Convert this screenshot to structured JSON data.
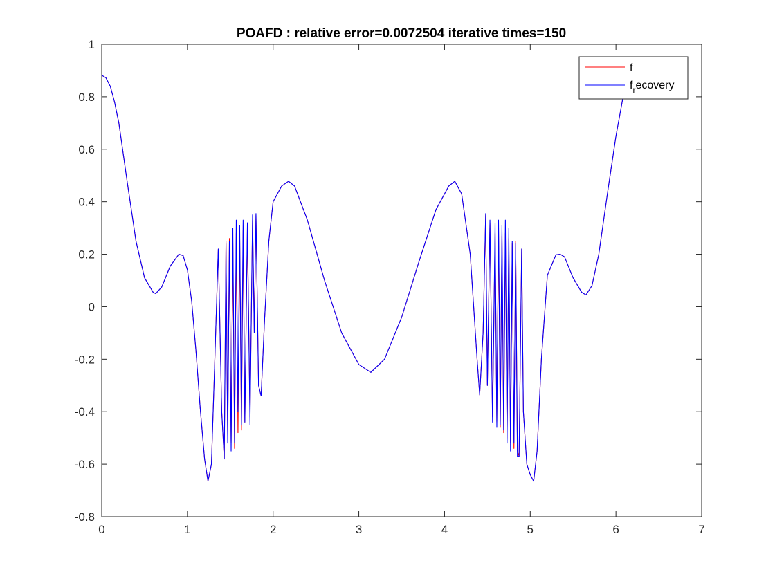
{
  "chart_data": {
    "type": "line",
    "title": "POAFD : relative error=0.0072504  iterative times=150",
    "xlabel": "",
    "ylabel": "",
    "xlim": [
      0,
      7
    ],
    "ylim": [
      -0.8,
      1
    ],
    "xticks": [
      "0",
      "1",
      "2",
      "3",
      "4",
      "5",
      "6",
      "7"
    ],
    "yticks": [
      "-0.8",
      "-0.6",
      "-0.4",
      "-0.2",
      "0",
      "0.2",
      "0.4",
      "0.6",
      "0.8",
      "1"
    ],
    "grid": false,
    "legend_position": "top-right",
    "legend": {
      "entry1": "f",
      "entry2_main": "f",
      "entry2_sub": "r",
      "entry2_rest": "ecovery"
    },
    "series": [
      {
        "name": "f",
        "color": "#ff0000",
        "x": [
          0,
          0.05,
          0.1,
          0.15,
          0.2,
          0.3,
          0.4,
          0.5,
          0.6,
          0.63,
          0.7,
          0.8,
          0.9,
          0.95,
          1.0,
          1.05,
          1.1,
          1.15,
          1.2,
          1.24,
          1.28,
          1.32,
          1.36,
          1.4,
          1.43,
          1.45,
          1.47,
          1.49,
          1.51,
          1.53,
          1.55,
          1.57,
          1.59,
          1.61,
          1.63,
          1.65,
          1.67,
          1.7,
          1.73,
          1.76,
          1.78,
          1.8,
          1.83,
          1.86,
          1.9,
          1.95,
          2.0,
          2.1,
          2.18,
          2.25,
          2.4,
          2.6,
          2.8,
          3.0,
          3.14,
          3.3,
          3.5,
          3.7,
          3.9,
          4.05,
          4.12,
          4.2,
          4.3,
          4.38,
          4.41,
          4.45,
          4.48,
          4.5,
          4.53,
          4.56,
          4.59,
          4.61,
          4.63,
          4.65,
          4.67,
          4.69,
          4.71,
          4.73,
          4.75,
          4.77,
          4.79,
          4.81,
          4.83,
          4.85,
          4.87,
          4.9,
          4.92,
          4.96,
          5.0,
          5.04,
          5.08,
          5.13,
          5.2,
          5.3,
          5.35,
          5.4,
          5.5,
          5.6,
          5.65,
          5.72,
          5.8,
          5.9,
          6.0,
          6.1,
          6.2
        ],
        "y": [
          0.882,
          0.872,
          0.84,
          0.78,
          0.7,
          0.47,
          0.25,
          0.11,
          0.055,
          0.05,
          0.075,
          0.155,
          0.2,
          0.195,
          0.14,
          0.02,
          -0.17,
          -0.39,
          -0.58,
          -0.665,
          -0.6,
          -0.2,
          0.22,
          -0.4,
          -0.58,
          0.25,
          -0.5,
          0.26,
          -0.52,
          0.24,
          -0.54,
          0.28,
          -0.48,
          0.27,
          -0.47,
          0.29,
          -0.44,
          0.3,
          -0.42,
          0.33,
          -0.1,
          0.35,
          -0.3,
          -0.34,
          -0.05,
          0.25,
          0.4,
          0.46,
          0.478,
          0.46,
          0.33,
          0.1,
          -0.1,
          -0.22,
          -0.25,
          -0.2,
          -0.04,
          0.17,
          0.37,
          0.46,
          0.478,
          0.43,
          0.2,
          -0.2,
          -0.336,
          -0.1,
          0.35,
          -0.3,
          0.32,
          -0.42,
          0.28,
          -0.44,
          0.3,
          -0.46,
          0.27,
          -0.48,
          0.28,
          -0.5,
          0.26,
          -0.52,
          0.24,
          -0.54,
          0.25,
          -0.55,
          -0.57,
          0.22,
          -0.4,
          -0.6,
          -0.64,
          -0.665,
          -0.55,
          -0.2,
          0.12,
          0.198,
          0.2,
          0.19,
          0.11,
          0.055,
          0.045,
          0.08,
          0.2,
          0.43,
          0.65,
          0.83,
          0.95
        ]
      },
      {
        "name": "f_recovery",
        "color": "#0000ff",
        "x": [
          0,
          0.05,
          0.1,
          0.15,
          0.2,
          0.3,
          0.4,
          0.5,
          0.6,
          0.63,
          0.7,
          0.8,
          0.9,
          0.95,
          1.0,
          1.05,
          1.1,
          1.15,
          1.2,
          1.24,
          1.28,
          1.32,
          1.36,
          1.4,
          1.43,
          1.45,
          1.47,
          1.49,
          1.51,
          1.53,
          1.55,
          1.57,
          1.59,
          1.61,
          1.63,
          1.65,
          1.67,
          1.7,
          1.73,
          1.76,
          1.78,
          1.8,
          1.83,
          1.86,
          1.9,
          1.95,
          2.0,
          2.1,
          2.18,
          2.25,
          2.4,
          2.6,
          2.8,
          3.0,
          3.14,
          3.3,
          3.5,
          3.7,
          3.9,
          4.05,
          4.12,
          4.2,
          4.3,
          4.38,
          4.41,
          4.45,
          4.48,
          4.5,
          4.53,
          4.56,
          4.59,
          4.61,
          4.63,
          4.65,
          4.67,
          4.69,
          4.71,
          4.73,
          4.75,
          4.77,
          4.79,
          4.81,
          4.83,
          4.85,
          4.87,
          4.9,
          4.92,
          4.96,
          5.0,
          5.04,
          5.08,
          5.13,
          5.2,
          5.3,
          5.35,
          5.4,
          5.5,
          5.6,
          5.65,
          5.72,
          5.8,
          5.9,
          6.0,
          6.1,
          6.2
        ],
        "y": [
          0.882,
          0.872,
          0.84,
          0.78,
          0.7,
          0.47,
          0.25,
          0.11,
          0.055,
          0.05,
          0.075,
          0.155,
          0.2,
          0.195,
          0.14,
          0.02,
          -0.17,
          -0.39,
          -0.58,
          -0.665,
          -0.6,
          -0.2,
          0.22,
          -0.4,
          -0.58,
          0.24,
          -0.52,
          0.25,
          -0.55,
          0.3,
          -0.52,
          0.33,
          -0.4,
          0.31,
          -0.45,
          0.33,
          -0.44,
          0.32,
          -0.45,
          0.35,
          -0.1,
          0.355,
          -0.3,
          -0.34,
          -0.05,
          0.25,
          0.4,
          0.46,
          0.478,
          0.46,
          0.33,
          0.1,
          -0.1,
          -0.22,
          -0.25,
          -0.2,
          -0.04,
          0.17,
          0.37,
          0.46,
          0.478,
          0.43,
          0.2,
          -0.2,
          -0.336,
          -0.1,
          0.355,
          -0.3,
          0.33,
          -0.44,
          0.32,
          -0.46,
          0.33,
          -0.45,
          0.31,
          -0.47,
          0.33,
          -0.52,
          0.3,
          -0.55,
          0.25,
          -0.52,
          0.24,
          -0.57,
          -0.57,
          0.22,
          -0.4,
          -0.6,
          -0.64,
          -0.665,
          -0.55,
          -0.2,
          0.12,
          0.198,
          0.2,
          0.19,
          0.11,
          0.055,
          0.045,
          0.08,
          0.2,
          0.43,
          0.65,
          0.83,
          0.95
        ]
      }
    ]
  }
}
